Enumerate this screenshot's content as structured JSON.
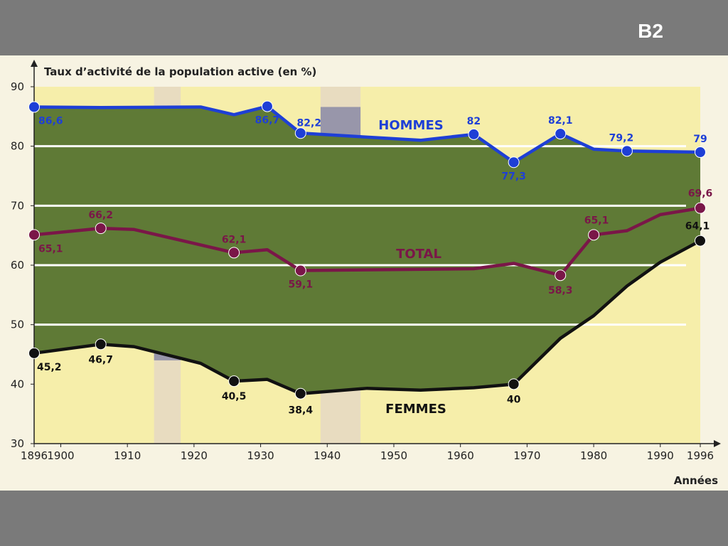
{
  "slide": {
    "label": "B2"
  },
  "chart_data": {
    "type": "line",
    "ylabel": "Taux d’activité de la population active (en %)",
    "xlabel": "Années",
    "ylim": [
      30,
      90
    ],
    "xlim": [
      1896,
      1996
    ],
    "yticks": [
      30,
      40,
      50,
      60,
      70,
      80,
      90
    ],
    "xticks": [
      1896,
      1900,
      1910,
      1920,
      1930,
      1940,
      1950,
      1960,
      1970,
      1980,
      1990,
      1996
    ],
    "shaded_periods": [
      [
        1914,
        1918
      ],
      [
        1939,
        1945
      ]
    ],
    "grid": {
      "y_lines": [
        50,
        60,
        70,
        80
      ]
    },
    "colors": {
      "hommes": "#1e3fd6",
      "total": "#7a1648",
      "femmes": "#111111",
      "fill": "#5f7a36",
      "background": "#f6eeaa",
      "war": "#8a8aa6"
    },
    "series": [
      {
        "name": "HOMMES",
        "key": "hommes",
        "points": [
          {
            "x": 1896,
            "y": 86.6,
            "label": "86,6"
          },
          {
            "x": 1906,
            "y": 86.5
          },
          {
            "x": 1921,
            "y": 86.6
          },
          {
            "x": 1926,
            "y": 85.3
          },
          {
            "x": 1931,
            "y": 86.7,
            "label": "86,7"
          },
          {
            "x": 1936,
            "y": 82.2,
            "label": "82,2"
          },
          {
            "x": 1954,
            "y": 81.0
          },
          {
            "x": 1962,
            "y": 82.0,
            "label": "82"
          },
          {
            "x": 1968,
            "y": 77.3,
            "label": "77,3"
          },
          {
            "x": 1975,
            "y": 82.1,
            "label": "82,1"
          },
          {
            "x": 1980,
            "y": 79.5
          },
          {
            "x": 1985,
            "y": 79.2,
            "label": "79,2"
          },
          {
            "x": 1996,
            "y": 79.0,
            "label": "79"
          }
        ]
      },
      {
        "name": "TOTAL",
        "key": "total",
        "points": [
          {
            "x": 1896,
            "y": 65.1,
            "label": "65,1"
          },
          {
            "x": 1906,
            "y": 66.2,
            "label": "66,2"
          },
          {
            "x": 1911,
            "y": 66.0
          },
          {
            "x": 1926,
            "y": 62.1,
            "label": "62,1"
          },
          {
            "x": 1931,
            "y": 62.6
          },
          {
            "x": 1936,
            "y": 59.1,
            "label": "59,1"
          },
          {
            "x": 1962,
            "y": 59.4
          },
          {
            "x": 1968,
            "y": 60.3
          },
          {
            "x": 1975,
            "y": 58.3,
            "label": "58,3"
          },
          {
            "x": 1980,
            "y": 65.1,
            "label": "65,1"
          },
          {
            "x": 1985,
            "y": 65.8
          },
          {
            "x": 1990,
            "y": 68.5
          },
          {
            "x": 1996,
            "y": 69.6,
            "label": "69,6"
          }
        ]
      },
      {
        "name": "FEMMES",
        "key": "femmes",
        "points": [
          {
            "x": 1896,
            "y": 45.2,
            "label": "45,2"
          },
          {
            "x": 1906,
            "y": 46.7,
            "label": "46,7"
          },
          {
            "x": 1911,
            "y": 46.3
          },
          {
            "x": 1921,
            "y": 43.5
          },
          {
            "x": 1926,
            "y": 40.5,
            "label": "40,5"
          },
          {
            "x": 1931,
            "y": 40.8
          },
          {
            "x": 1936,
            "y": 38.4,
            "label": "38,4"
          },
          {
            "x": 1946,
            "y": 39.3
          },
          {
            "x": 1954,
            "y": 39.0
          },
          {
            "x": 1962,
            "y": 39.4
          },
          {
            "x": 1968,
            "y": 40.0,
            "label": "40"
          },
          {
            "x": 1975,
            "y": 47.7
          },
          {
            "x": 1980,
            "y": 51.5
          },
          {
            "x": 1985,
            "y": 56.5
          },
          {
            "x": 1990,
            "y": 60.5
          },
          {
            "x": 1996,
            "y": 64.1,
            "label": "64,1"
          }
        ]
      }
    ]
  }
}
